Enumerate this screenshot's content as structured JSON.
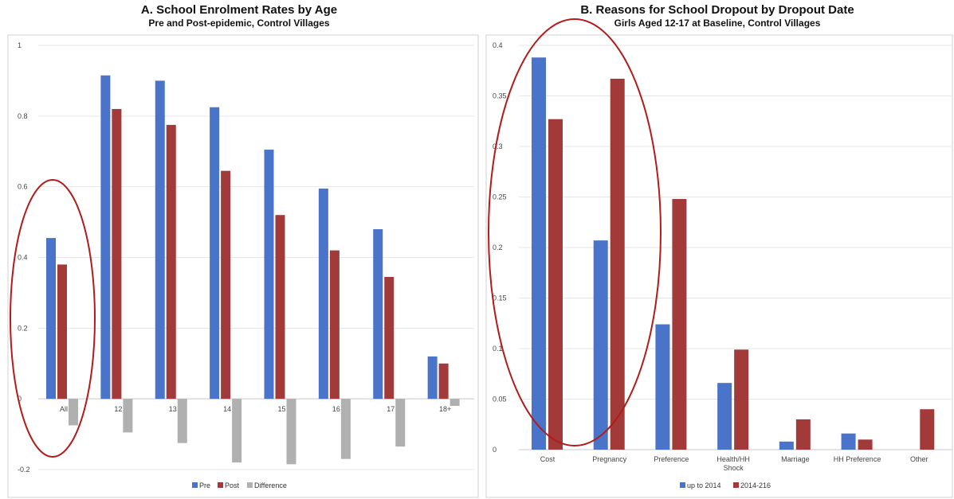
{
  "chart_data": [
    {
      "type": "bar",
      "title": "A. School Enrolment Rates by Age",
      "subtitle": "Pre and Post-epidemic, Control Villages",
      "categories": [
        "All",
        "12",
        "13",
        "14",
        "15",
        "16",
        "17",
        "18+"
      ],
      "series": [
        {
          "name": "Pre",
          "color": "#4a74c9",
          "values": [
            0.455,
            0.915,
            0.9,
            0.825,
            0.705,
            0.595,
            0.48,
            0.12
          ]
        },
        {
          "name": "Post",
          "color": "#a33a3a",
          "values": [
            0.38,
            0.82,
            0.775,
            0.645,
            0.52,
            0.42,
            0.345,
            0.1
          ]
        },
        {
          "name": "Difference",
          "color": "#b0b0b0",
          "values": [
            -0.075,
            -0.095,
            -0.125,
            -0.18,
            -0.185,
            -0.17,
            -0.135,
            -0.02
          ]
        }
      ],
      "yticks": [
        "1",
        "0.8",
        "0.6",
        "0.4",
        "0.2",
        "0",
        "-0.2"
      ],
      "ylim": [
        -0.2,
        1
      ],
      "grid": true,
      "legend_position": "bottom-center"
    },
    {
      "type": "bar",
      "title": "B. Reasons for School Dropout by Dropout Date",
      "subtitle": "Girls Aged 12-17 at Baseline, Control Villages",
      "categories": [
        "Cost",
        "Pregnancy",
        "Preference",
        "Health/HH Shock",
        "Marriage",
        "HH Preference",
        "Other"
      ],
      "category_lines": [
        [
          "Cost"
        ],
        [
          "Pregnancy"
        ],
        [
          "Preference"
        ],
        [
          "Health/HH",
          "Shock"
        ],
        [
          "Marriage"
        ],
        [
          "HH Preference"
        ],
        [
          "Other"
        ]
      ],
      "series": [
        {
          "name": "up to 2014",
          "color": "#4a74c9",
          "values": [
            0.388,
            0.207,
            0.124,
            0.066,
            0.008,
            0.016,
            0.0
          ]
        },
        {
          "name": "2014-216",
          "color": "#a33a3a",
          "values": [
            0.327,
            0.367,
            0.248,
            0.099,
            0.03,
            0.01,
            0.04
          ]
        }
      ],
      "yticks": [
        "0.4",
        "0.35",
        "0.3",
        "0.25",
        "0.2",
        "0.15",
        "0.1",
        "0.05",
        "0"
      ],
      "ylim": [
        0,
        0.4
      ],
      "grid": true,
      "legend_position": "bottom-center"
    }
  ],
  "annotation_color": "#b31b1b"
}
